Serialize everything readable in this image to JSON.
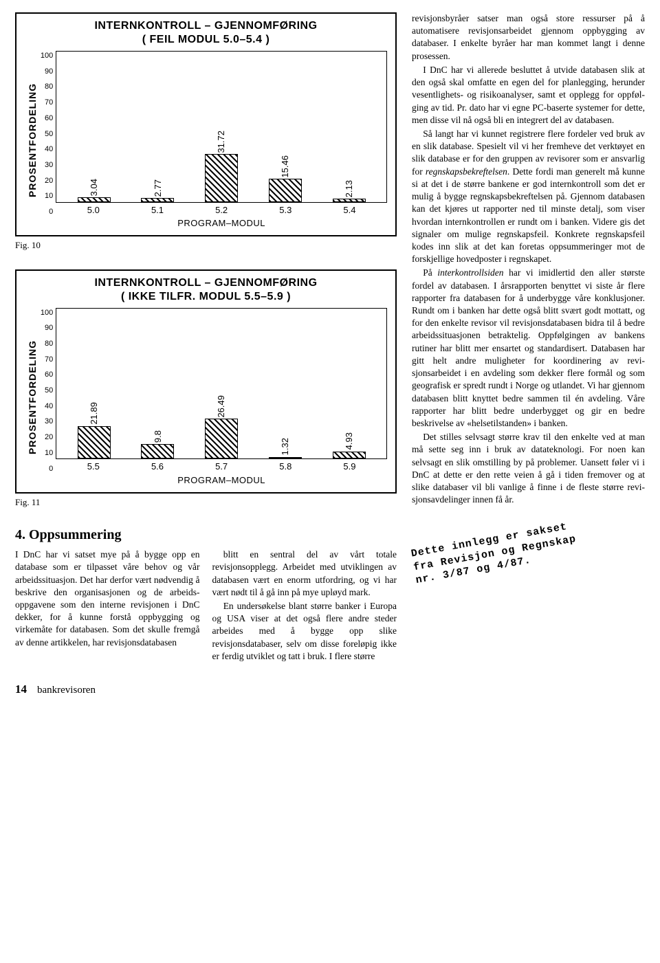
{
  "chart1": {
    "title_line1": "INTERNKONTROLL – GJENNOMFØRING",
    "title_line2": "( FEIL MODUL 5.0–5.4 )",
    "y_label": "PROSENTFORDELING",
    "x_label": "PROGRAM–MODUL",
    "ymax": 100,
    "yticks": [
      "100",
      "90",
      "80",
      "70",
      "60",
      "50",
      "40",
      "30",
      "20",
      "10",
      "0"
    ],
    "categories": [
      "5.0",
      "5.1",
      "5.2",
      "5.3",
      "5.4"
    ],
    "values": [
      3.04,
      2.77,
      31.72,
      15.46,
      2.13
    ],
    "value_labels": [
      "3.04",
      "2.77",
      "31.72",
      "15.46",
      "2.13"
    ],
    "caption": "Fig. 10"
  },
  "chart2": {
    "title_line1": "INTERNKONTROLL – GJENNOMFØRING",
    "title_line2": "( IKKE TILFR. MODUL 5.5–5.9 )",
    "y_label": "PROSENTFORDELING",
    "x_label": "PROGRAM–MODUL",
    "ymax": 100,
    "yticks": [
      "100",
      "90",
      "80",
      "70",
      "60",
      "50",
      "40",
      "30",
      "20",
      "10",
      "0"
    ],
    "categories": [
      "5.5",
      "5.6",
      "5.7",
      "5.8",
      "5.9"
    ],
    "values": [
      21.89,
      9.8,
      26.49,
      1.32,
      4.93
    ],
    "value_labels": [
      "21.89",
      "9.8",
      "26.49",
      "1.32",
      "4.93"
    ],
    "caption": "Fig. 11"
  },
  "summary": {
    "heading": "4. Oppsummering",
    "p1": "I DnC har vi satset mye på å bygge opp en database som er tilpasset våre behov og vår arbeidssituasjon. Det har derfor vært nødvendig å beskrive den organisasjonen og de arbeids­oppgavene som den interne revisjo­nen i DnC dekker, for å kunne forstå oppbygging og virkemåte for databa­sen. Som det skulle fremgå av denne artikkelen, har revisjonsdatabasen",
    "p2": "blitt en sentral del av vårt totale revisjonsopplegg. Arbeidet med utvik­lingen av databasen vært en enorm utfordring, og vi har vært nødt til å gå inn på mye upløyd mark.",
    "p3": "En undersøkelse blant større ban­ker i Europa og USA viser at det også flere andre steder arbeides med å bygge opp slike revisjonsdatabaser, selv om disse foreløpig ikke er ferdig utviklet og tatt i bruk. I flere større"
  },
  "right": {
    "p1": "revisjonsbyråer satser man også store ressurser på å automatisere revisjons­arbeidet gjennom oppbygging av databaser. I enkelte byråer har man kommet langt i denne prosessen.",
    "p2": "I DnC har vi allerede besluttet å utvide databasen slik at den også skal omfatte en egen del for planlegging, herunder vesentlighets- og risiko­analyser, samt et opplegg for oppføl­ging av tid. Pr. dato har vi egne PC-baserte systemer for dette, men disse vil nå også bli en integrert del av data­basen.",
    "p3a": "Så langt har vi kunnet registrere flere fordeler ved bruk av en slik data­base. Spesielt vil vi her fremheve det verktøyet en slik database er for den gruppen av revisorer som er ansvarlig for ",
    "p3i": "regnskapsbekreftelsen",
    "p3b": ". Dette fordi man generelt må kunne si at det i de større bankene er god internkontroll som det er mulig å bygge regnskaps­bekreftelsen på. Gjennom databasen kan det kjøres ut rapporter ned til minste detalj, som viser hvordan internkontrollen er rundt om i banken. Videre gis det signaler om mulige regnskapsfeil. Konkrete regnskapsfeil kodes inn slik at det kan foretas opp­summeringer mot de forskjellige hovedposter i regnskapet.",
    "p4a": "På ",
    "p4i": "interkontrollsiden",
    "p4b": " har vi imidler­tid den aller største fordel av databa­sen. I årsrapporten benyttet vi siste år flere rapporter fra databasen for å underbygge våre konklusjoner. Rundt om i banken har dette også blitt svært godt mottatt, og for den enkelte revi­sor vil revisjonsdatabasen bidra til å bedre arbeidssituasjonen betraktelig. Oppfølgingen av bankens rutiner har blitt mer ensartet og standardisert. Databasen har gitt helt andre muligheter for koordinering av revi­sjonsarbeidet i en avdeling som dek­ker flere formål og som geografisk er spredt rundt i Norge og utlandet. Vi har gjennom databasen blitt knyttet bedre sammen til én avdeling. Våre rapporter har blitt bedre underbygget og gir en bedre beskrivelse av «helse­tilstanden» i banken.",
    "p5": "Det stilles selvsagt større krav til den enkelte ved at man må sette seg inn i bruk av datateknologi. For noen kan selvsagt en slik omstilling by på problemer. Uansett føler vi i DnC at dette er den rette veien å gå i tiden fremover og at slike databaser vil bli vanlige å finne i de fleste større revi­sjonsavdelinger innen få år."
  },
  "stamp": {
    "l1": "Dette innlegg er sakset",
    "l2": "fra Revisjon og Regnskap",
    "l3": "nr. 3/87 og 4/87."
  },
  "footer": {
    "page": "14",
    "journal": "bankrevisoren"
  }
}
